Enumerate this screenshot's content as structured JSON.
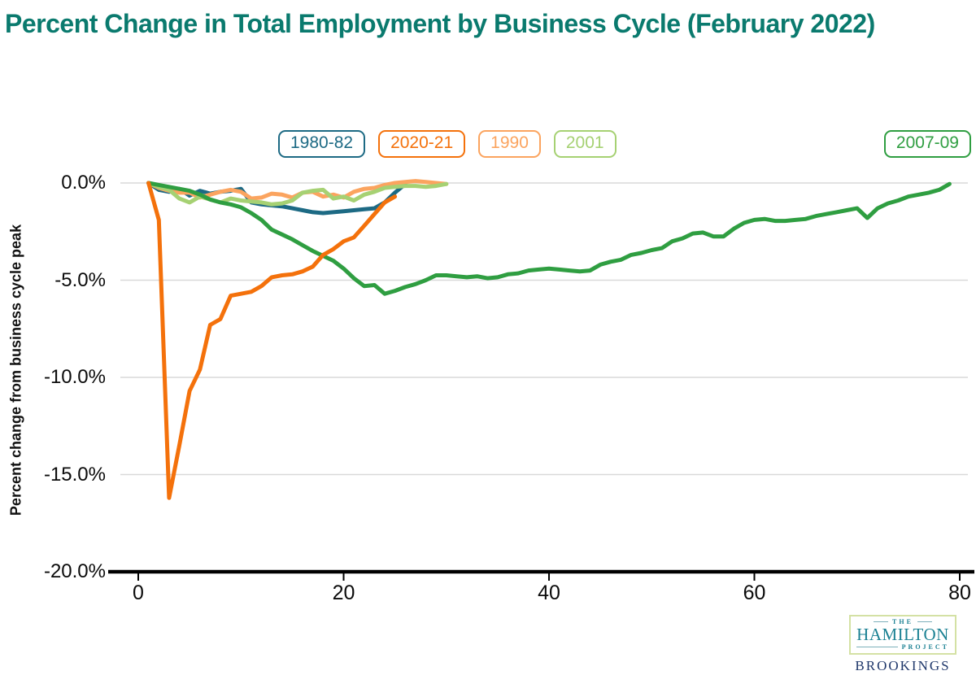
{
  "title": "Percent Change in Total Employment by Business Cycle (February 2022)",
  "chart_data": {
    "type": "line",
    "title": "Percent Change in Total Employment by Business Cycle (February 2022)",
    "xlabel": "",
    "ylabel": "Percent change from business cycle peak",
    "xlim": [
      0,
      80
    ],
    "ylim": [
      -20,
      0
    ],
    "grid": "horizontal",
    "legend_position": "top",
    "x_ticks": [
      0,
      20,
      40,
      60,
      80
    ],
    "y_ticks": [
      {
        "label": "0.0%",
        "value": 0
      },
      {
        "label": "-5.0%",
        "value": -5
      },
      {
        "label": "-10.0%",
        "value": -10
      },
      {
        "label": "-15.0%",
        "value": -15
      },
      {
        "label": "-20.0%",
        "value": -20
      }
    ],
    "x_start_month": 1,
    "series": [
      {
        "name": "1980-82",
        "color": "#1d6a84",
        "values": [
          0,
          -0.35,
          -0.45,
          -0.3,
          -0.65,
          -0.4,
          -0.55,
          -0.45,
          -0.4,
          -0.3,
          -1.0,
          -1.1,
          -1.15,
          -1.2,
          -1.3,
          -1.4,
          -1.5,
          -1.55,
          -1.5,
          -1.45,
          -1.4,
          -1.35,
          -1.3,
          -1.0,
          -0.5,
          -0.05
        ]
      },
      {
        "name": "2020-21",
        "color": "#f4710b",
        "values": [
          0,
          -1.9,
          -16.2,
          -13.5,
          -10.7,
          -9.6,
          -7.3,
          -7.0,
          -5.8,
          -5.7,
          -5.6,
          -5.3,
          -4.85,
          -4.75,
          -4.7,
          -4.55,
          -4.3,
          -3.7,
          -3.4,
          -3.0,
          -2.8,
          -2.2,
          -1.6,
          -1.0,
          -0.7
        ]
      },
      {
        "name": "1990",
        "color": "#fba45f",
        "values": [
          0,
          -0.25,
          -0.4,
          -0.5,
          -0.5,
          -0.75,
          -0.6,
          -0.45,
          -0.35,
          -0.45,
          -0.8,
          -0.75,
          -0.55,
          -0.6,
          -0.75,
          -0.5,
          -0.45,
          -0.7,
          -0.6,
          -0.75,
          -0.45,
          -0.3,
          -0.25,
          -0.1,
          0.0,
          0.05,
          0.1,
          0.05,
          0.0,
          -0.05
        ]
      },
      {
        "name": "2001",
        "color": "#a6d173",
        "values": [
          0,
          -0.2,
          -0.35,
          -0.8,
          -1.0,
          -0.7,
          -0.85,
          -1.0,
          -0.8,
          -0.9,
          -0.95,
          -1.0,
          -1.1,
          -1.05,
          -0.9,
          -0.5,
          -0.4,
          -0.35,
          -0.8,
          -0.7,
          -0.9,
          -0.6,
          -0.45,
          -0.25,
          -0.2,
          -0.15,
          -0.15,
          -0.2,
          -0.15,
          -0.05
        ]
      },
      {
        "name": "2007-09",
        "color": "#2f9e41",
        "values": [
          0,
          -0.1,
          -0.2,
          -0.3,
          -0.4,
          -0.6,
          -0.85,
          -1.0,
          -1.1,
          -1.25,
          -1.55,
          -1.9,
          -2.4,
          -2.65,
          -2.9,
          -3.2,
          -3.5,
          -3.75,
          -4.0,
          -4.4,
          -4.9,
          -5.3,
          -5.25,
          -5.7,
          -5.55,
          -5.35,
          -5.2,
          -5.0,
          -4.75,
          -4.75,
          -4.8,
          -4.85,
          -4.8,
          -4.9,
          -4.85,
          -4.7,
          -4.65,
          -4.5,
          -4.45,
          -4.4,
          -4.45,
          -4.5,
          -4.55,
          -4.5,
          -4.2,
          -4.05,
          -3.95,
          -3.7,
          -3.6,
          -3.45,
          -3.35,
          -3.0,
          -2.85,
          -2.6,
          -2.55,
          -2.75,
          -2.75,
          -2.35,
          -2.05,
          -1.9,
          -1.85,
          -1.95,
          -1.95,
          -1.9,
          -1.85,
          -1.7,
          -1.6,
          -1.5,
          -1.4,
          -1.3,
          -1.8,
          -1.3,
          -1.05,
          -0.9,
          -0.7,
          -0.6,
          -0.5,
          -0.35,
          -0.05
        ]
      }
    ]
  },
  "legend_order": [
    "1980-82",
    "2020-21",
    "1990",
    "2001",
    "2007-09"
  ],
  "logo": {
    "the": "THE",
    "hamilton": "HAMILTON",
    "project": "PROJECT",
    "brookings": "BROOKINGS"
  }
}
